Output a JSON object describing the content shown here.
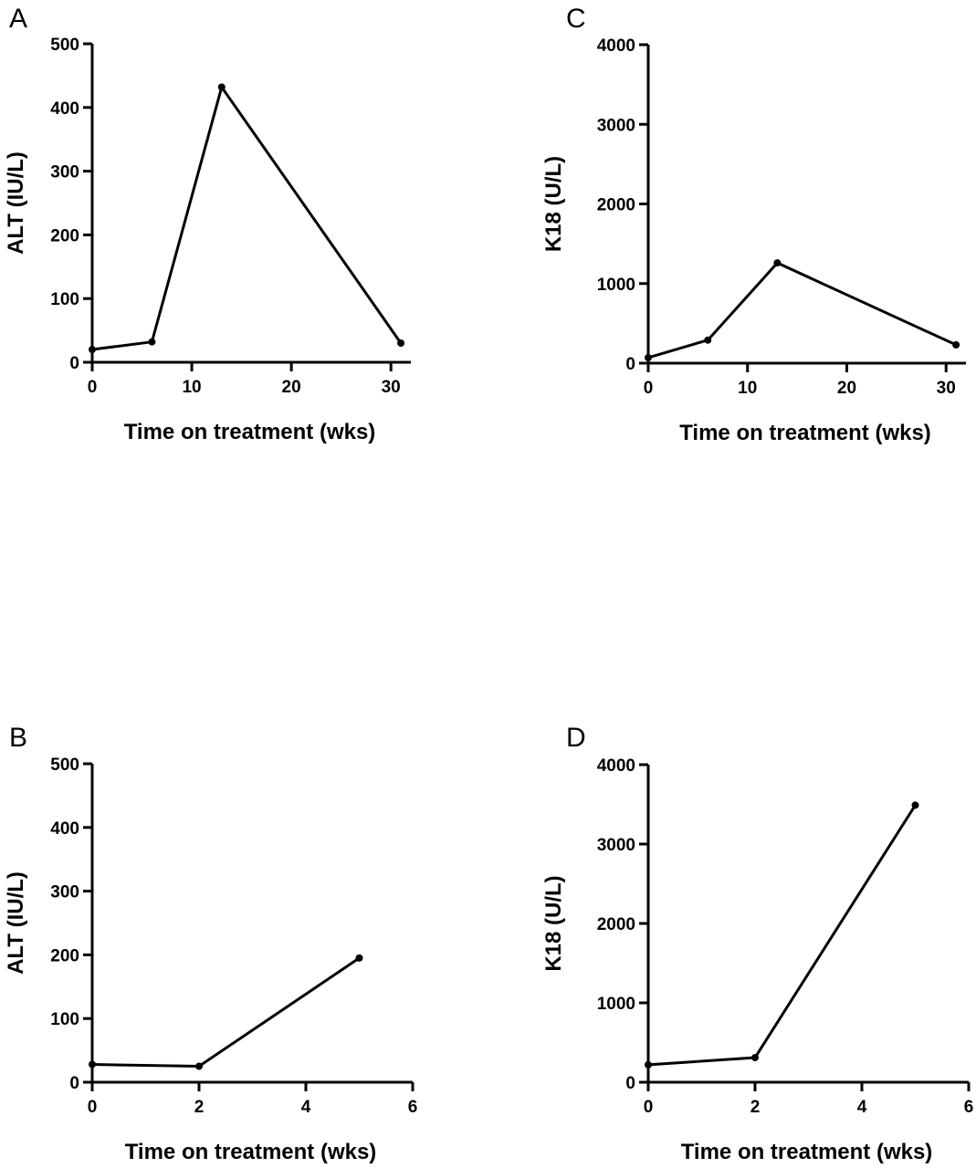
{
  "chart_data": [
    {
      "panel": "A",
      "type": "line",
      "xlabel": "Time on treatment (wks)",
      "ylabel": "ALT (IU/L)",
      "xlim": [
        0,
        32
      ],
      "ylim": [
        0,
        500
      ],
      "xticks": [
        0,
        10,
        20,
        30
      ],
      "yticks": [
        0,
        100,
        200,
        300,
        400,
        500
      ],
      "x": [
        0,
        6,
        13,
        31
      ],
      "y": [
        20,
        32,
        432,
        30
      ]
    },
    {
      "panel": "C",
      "type": "line",
      "xlabel": "Time on treatment (wks)",
      "ylabel": "K18 (U/L)",
      "xlim": [
        0,
        32
      ],
      "ylim": [
        0,
        4000
      ],
      "xticks": [
        0,
        10,
        20,
        30
      ],
      "yticks": [
        0,
        1000,
        2000,
        3000,
        4000
      ],
      "x": [
        0,
        6,
        13,
        31
      ],
      "y": [
        70,
        290,
        1260,
        230
      ]
    },
    {
      "panel": "B",
      "type": "line",
      "xlabel": "Time on treatment (wks)",
      "ylabel": "ALT (IU/L)",
      "xlim": [
        0,
        6
      ],
      "ylim": [
        0,
        500
      ],
      "xticks": [
        0,
        2,
        4,
        6
      ],
      "yticks": [
        0,
        100,
        200,
        300,
        400,
        500
      ],
      "x": [
        0,
        2,
        5
      ],
      "y": [
        28,
        25,
        195
      ]
    },
    {
      "panel": "D",
      "type": "line",
      "xlabel": "Time on treatment (wks)",
      "ylabel": "K18 (U/L)",
      "xlim": [
        0,
        6
      ],
      "ylim": [
        0,
        4000
      ],
      "xticks": [
        0,
        2,
        4,
        6
      ],
      "yticks": [
        0,
        1000,
        2000,
        3000,
        4000
      ],
      "x": [
        0,
        2,
        5
      ],
      "y": [
        220,
        310,
        3490
      ]
    }
  ]
}
